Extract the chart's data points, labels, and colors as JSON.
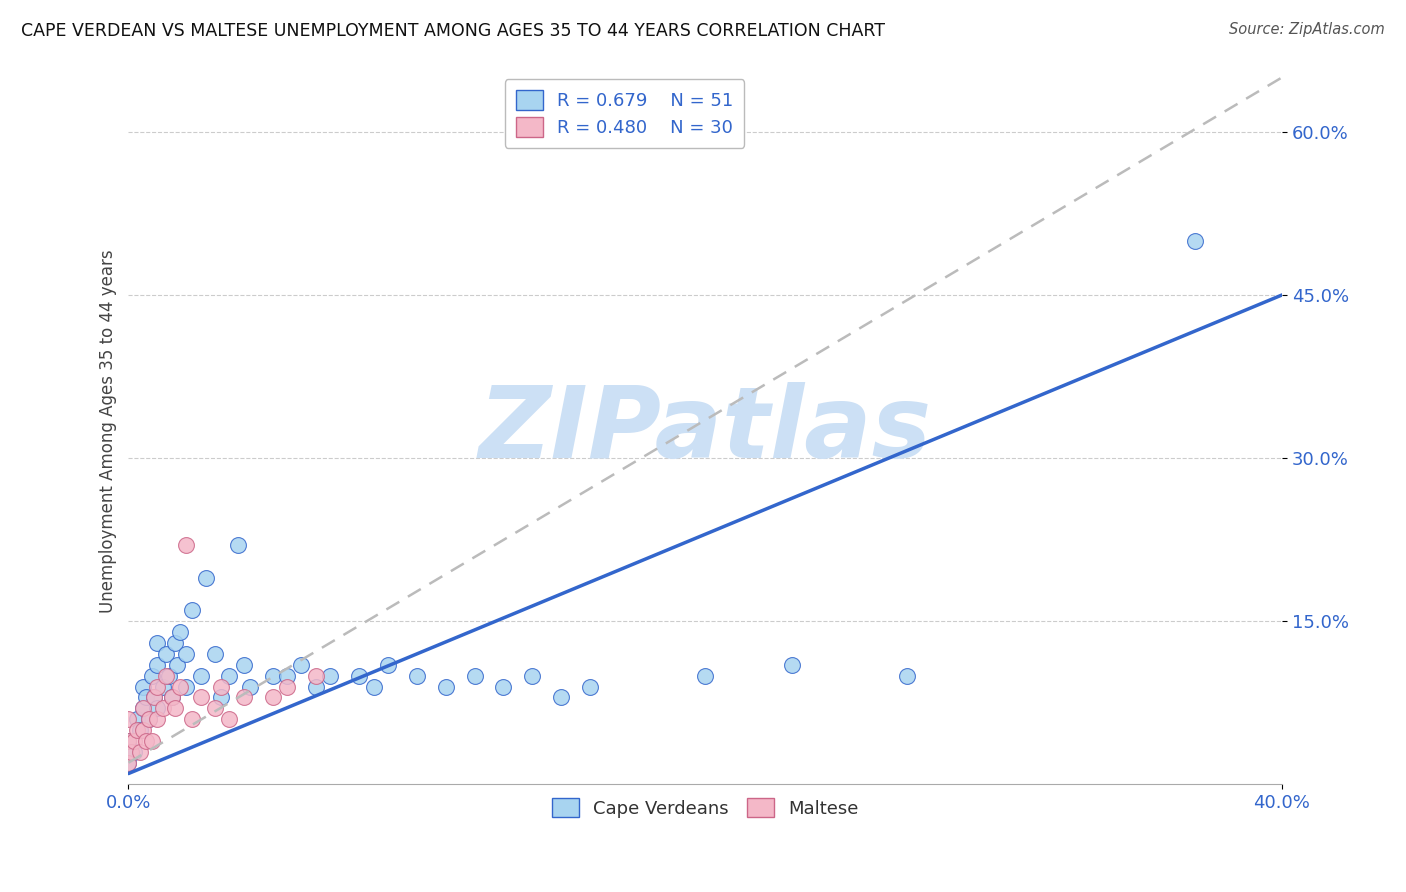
{
  "title": "CAPE VERDEAN VS MALTESE UNEMPLOYMENT AMONG AGES 35 TO 44 YEARS CORRELATION CHART",
  "source": "Source: ZipAtlas.com",
  "xlabel_min": 0.0,
  "xlabel_max": 0.4,
  "ylabel_min": 0.0,
  "ylabel_max": 0.65,
  "r_cape_verdean": 0.679,
  "n_cape_verdean": 51,
  "r_maltese": 0.48,
  "n_maltese": 30,
  "color_cape_verdean": "#a8d4f0",
  "color_maltese": "#f4b8c8",
  "color_line_cape_verdean": "#3366cc",
  "color_line_maltese": "#bbbbbb",
  "watermark": "ZIPatlas",
  "watermark_color": "#cce0f5",
  "cv_line_x0": 0.0,
  "cv_line_y0": 0.01,
  "cv_line_x1": 0.4,
  "cv_line_y1": 0.45,
  "m_line_x0": 0.0,
  "m_line_y0": 0.02,
  "m_line_x1": 0.4,
  "m_line_y1": 0.65,
  "cape_verdean_x": [
    0.0,
    0.0,
    0.002,
    0.003,
    0.004,
    0.005,
    0.005,
    0.006,
    0.007,
    0.008,
    0.009,
    0.01,
    0.01,
    0.01,
    0.012,
    0.013,
    0.014,
    0.015,
    0.016,
    0.017,
    0.018,
    0.02,
    0.02,
    0.022,
    0.025,
    0.027,
    0.03,
    0.032,
    0.035,
    0.038,
    0.04,
    0.042,
    0.05,
    0.055,
    0.06,
    0.065,
    0.07,
    0.08,
    0.085,
    0.09,
    0.1,
    0.11,
    0.12,
    0.13,
    0.14,
    0.15,
    0.16,
    0.2,
    0.23,
    0.27,
    0.37
  ],
  "cape_verdean_y": [
    0.02,
    0.04,
    0.03,
    0.06,
    0.05,
    0.07,
    0.09,
    0.08,
    0.06,
    0.1,
    0.08,
    0.07,
    0.11,
    0.13,
    0.09,
    0.12,
    0.1,
    0.08,
    0.13,
    0.11,
    0.14,
    0.09,
    0.12,
    0.16,
    0.1,
    0.19,
    0.12,
    0.08,
    0.1,
    0.22,
    0.11,
    0.09,
    0.1,
    0.1,
    0.11,
    0.09,
    0.1,
    0.1,
    0.09,
    0.11,
    0.1,
    0.09,
    0.1,
    0.09,
    0.1,
    0.08,
    0.09,
    0.1,
    0.11,
    0.1,
    0.5
  ],
  "maltese_x": [
    0.0,
    0.0,
    0.0,
    0.001,
    0.002,
    0.003,
    0.004,
    0.005,
    0.005,
    0.006,
    0.007,
    0.008,
    0.009,
    0.01,
    0.01,
    0.012,
    0.013,
    0.015,
    0.016,
    0.018,
    0.02,
    0.022,
    0.025,
    0.03,
    0.032,
    0.035,
    0.04,
    0.05,
    0.055,
    0.065
  ],
  "maltese_y": [
    0.02,
    0.04,
    0.06,
    0.03,
    0.04,
    0.05,
    0.03,
    0.05,
    0.07,
    0.04,
    0.06,
    0.04,
    0.08,
    0.06,
    0.09,
    0.07,
    0.1,
    0.08,
    0.07,
    0.09,
    0.22,
    0.06,
    0.08,
    0.07,
    0.09,
    0.06,
    0.08,
    0.08,
    0.09,
    0.1
  ]
}
